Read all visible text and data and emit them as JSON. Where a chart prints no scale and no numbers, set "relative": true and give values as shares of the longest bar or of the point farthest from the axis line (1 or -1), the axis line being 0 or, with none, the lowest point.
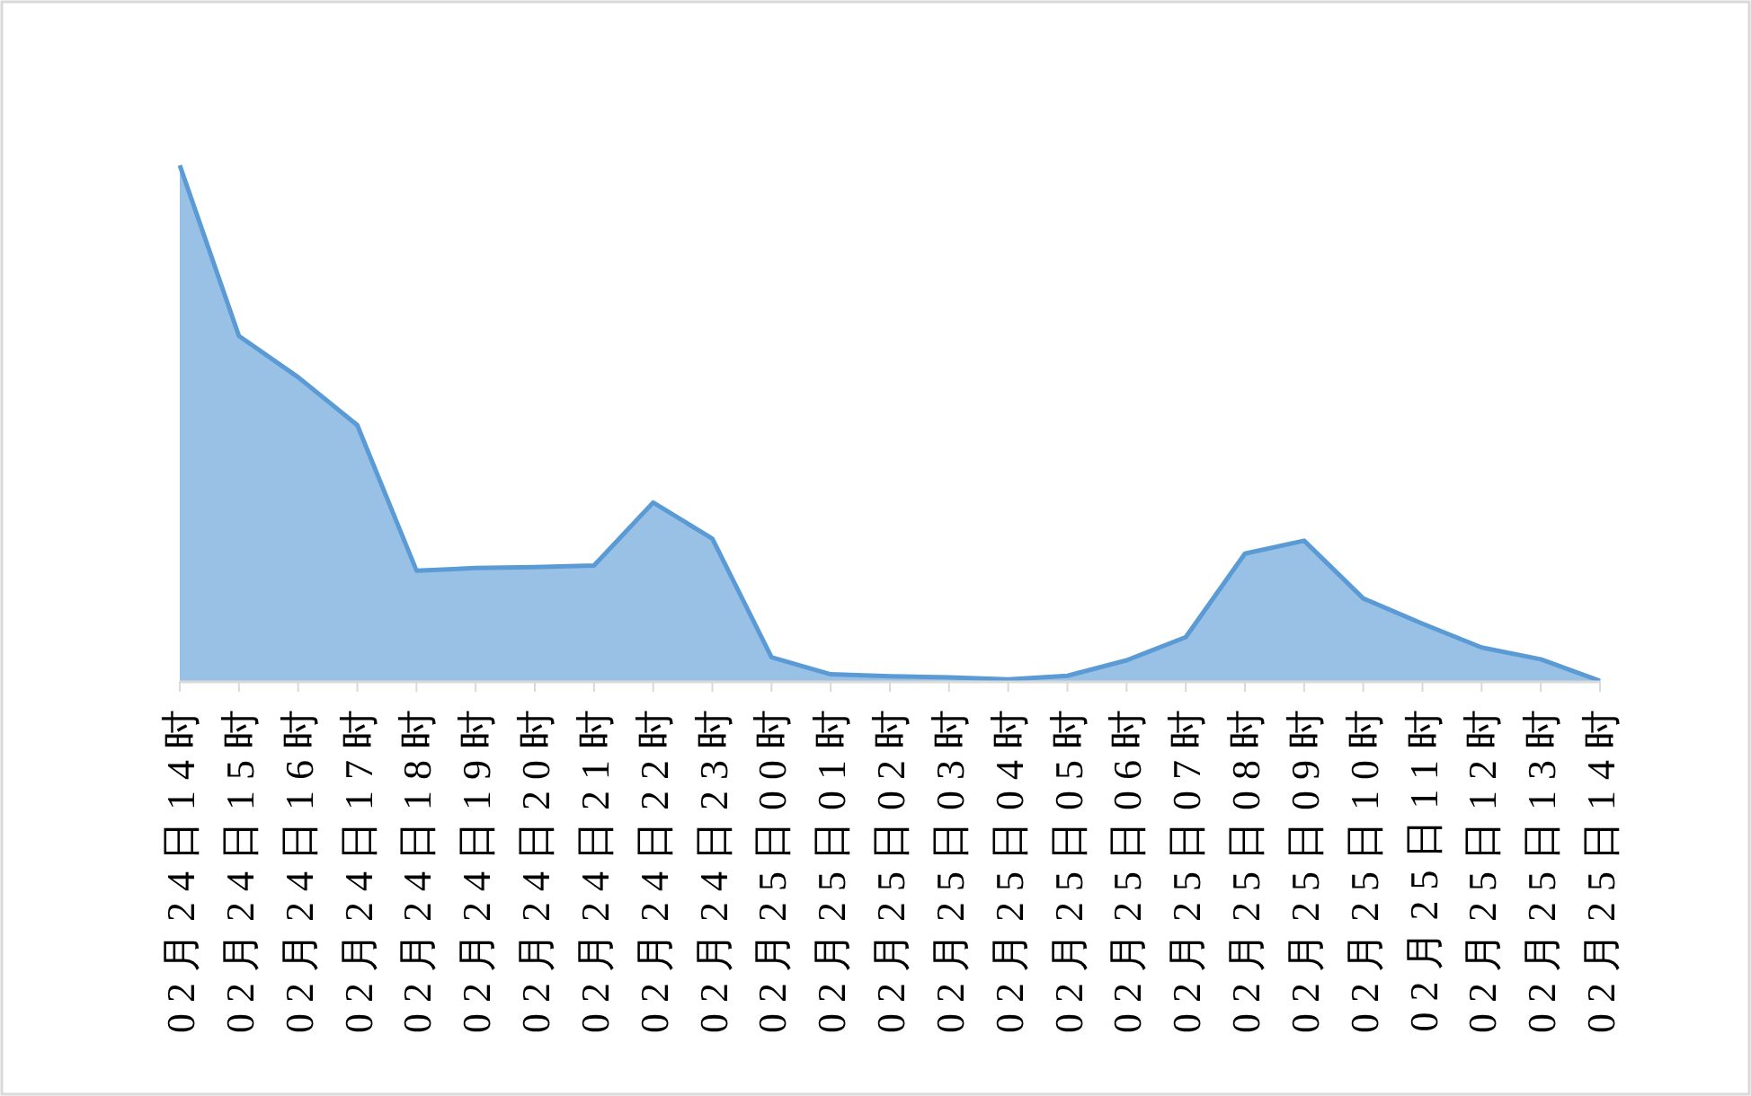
{
  "chart_data": {
    "type": "area",
    "relative": true,
    "color": "#5b9bd5",
    "categories": [
      "02月24日14时",
      "02月24日15时",
      "02月24日16时",
      "02月24日17时",
      "02月24日18时",
      "02月24日19时",
      "02月24日20时",
      "02月24日21时",
      "02月24日22时",
      "02月24日23时",
      "02月25日00时",
      "02月25日01时",
      "02月25日02时",
      "02月25日03时",
      "02月25日04时",
      "02月25日05时",
      "02月25日06时",
      "02月25日07时",
      "02月25日08时",
      "02月25日09时",
      "02月25日10时",
      "02月25日11时",
      "02月25日12时",
      "02月25日13时",
      "02月25日14时"
    ],
    "values": [
      1,
      0.669,
      0.589,
      0.496,
      0.214,
      0.219,
      0.221,
      0.224,
      0.346,
      0.276,
      0.046,
      0.013,
      0.009,
      0.007,
      0.003,
      0.01,
      0.04,
      0.085,
      0.247,
      0.272,
      0.16,
      0.111,
      0.065,
      0.042,
      0
    ]
  }
}
